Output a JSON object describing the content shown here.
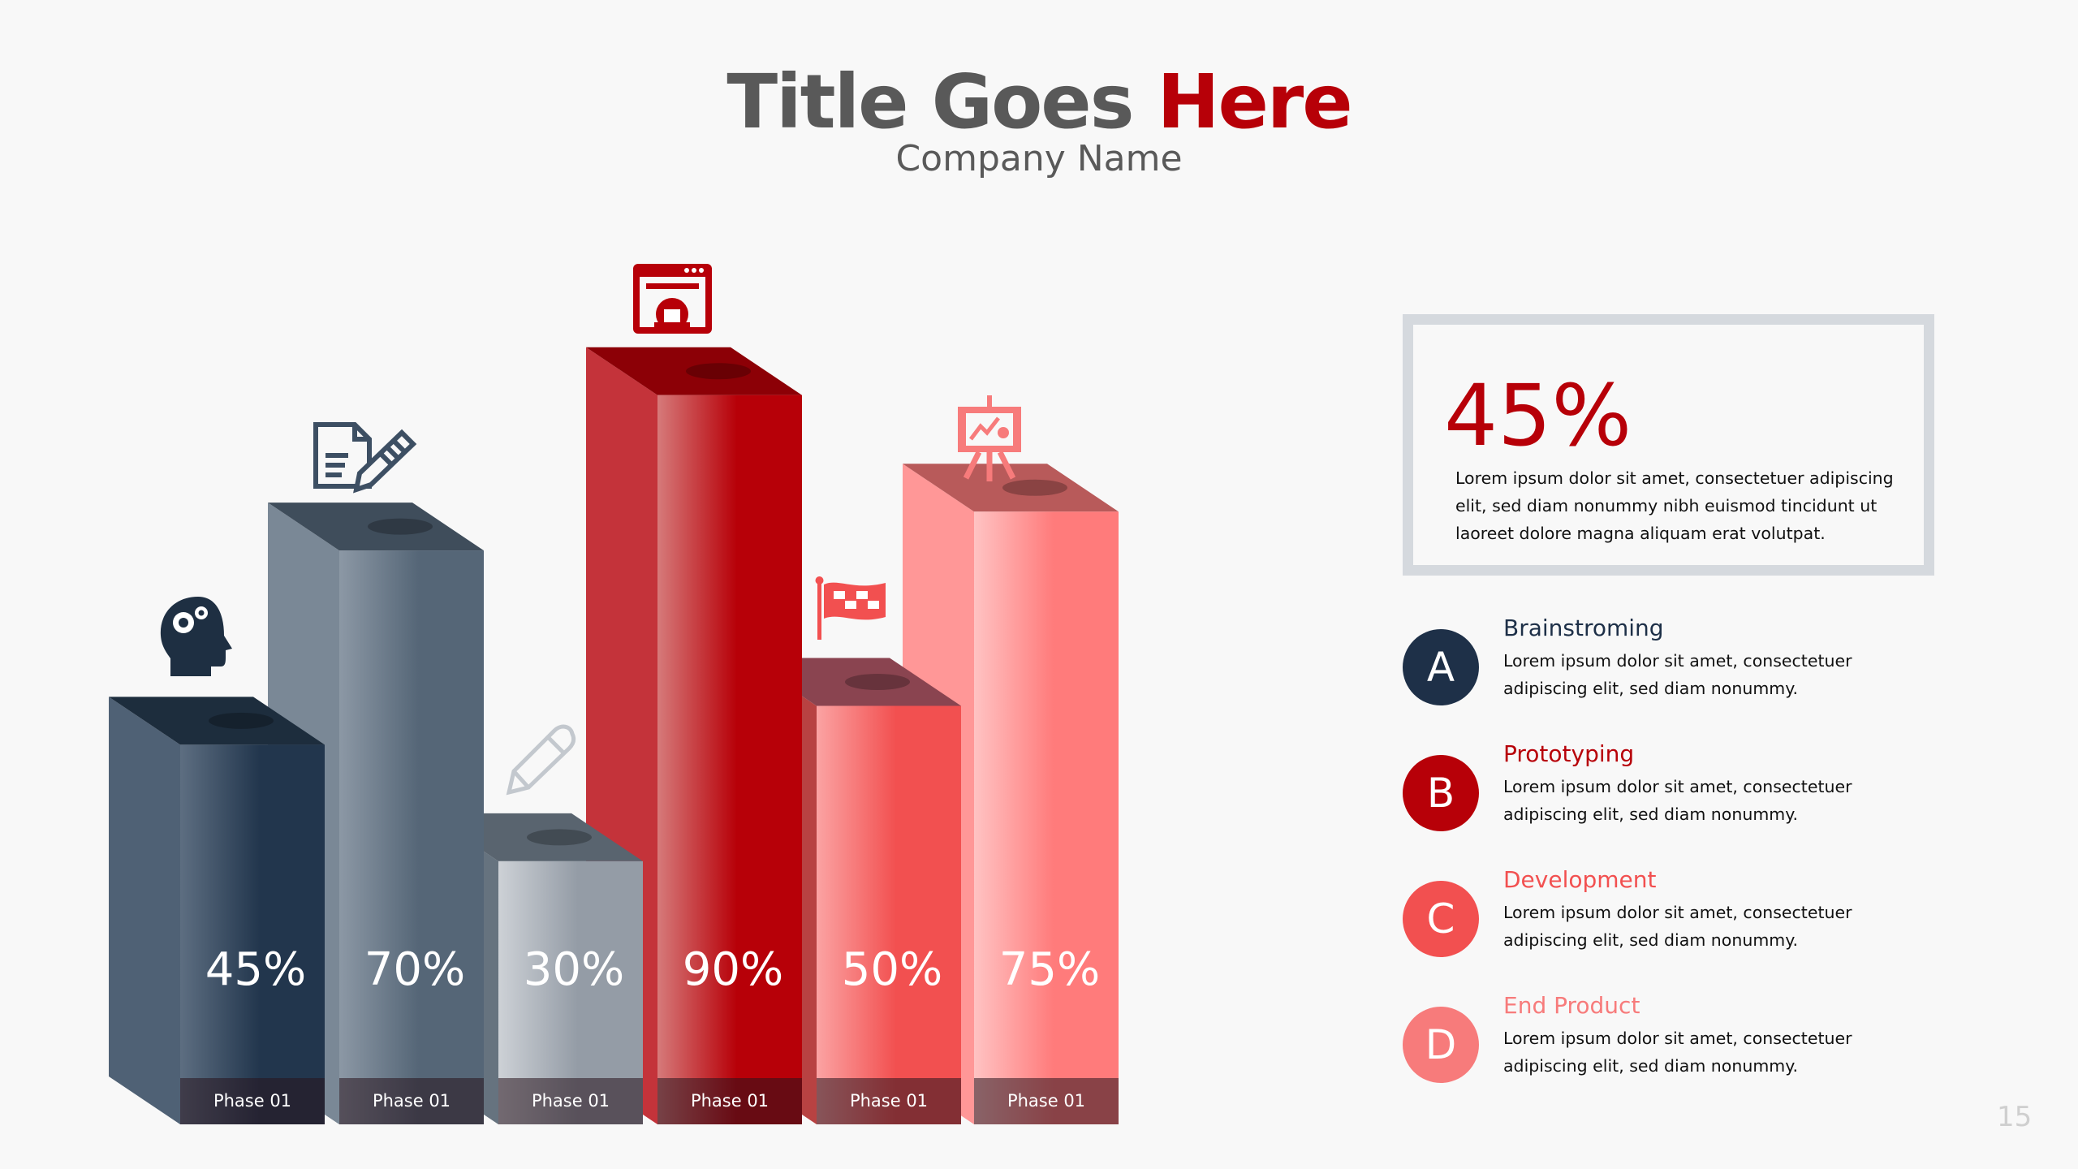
{
  "header": {
    "title_part1": "Title Goes",
    "title_highlight": "Here",
    "subtitle": "Company Name"
  },
  "chart_data": {
    "type": "bar",
    "style": "3d",
    "categories": [
      "Phase 01",
      "Phase 01",
      "Phase 01",
      "Phase 01",
      "Phase 01",
      "Phase 01"
    ],
    "values": [
      45,
      70,
      30,
      90,
      50,
      75
    ],
    "value_labels": [
      "45%",
      "70%",
      "30%",
      "90%",
      "50%",
      "75%"
    ],
    "icons": [
      "head-gears-icon",
      "document-pencil-icon",
      "pencil-icon",
      "browser-gear-icon",
      "checkered-flag-icon",
      "presentation-easel-icon"
    ],
    "colors": [
      "#22364d",
      "#556677",
      "#949ca6",
      "#b70008",
      "#f25050",
      "#ff7b7b"
    ]
  },
  "highlight_box": {
    "value": "45%",
    "text": "Lorem ipsum dolor sit amet, consectetuer adipiscing elit, sed diam nonummy nibh euismod tincidunt ut laoreet dolore magna aliquam erat volutpat."
  },
  "legend_items": [
    {
      "letter": "A",
      "name": "Brainstroming",
      "desc": "Lorem ipsum dolor sit amet, consectetuer adipiscing elit, sed diam nonummy.",
      "color": "#1e3048"
    },
    {
      "letter": "B",
      "name": "Prototyping",
      "desc": "Lorem ipsum dolor sit amet, consectetuer adipiscing elit, sed diam nonummy.",
      "color": "#b70008"
    },
    {
      "letter": "C",
      "name": "Development",
      "desc": "Lorem ipsum dolor sit amet, consectetuer adipiscing elit, sed diam nonummy.",
      "color": "#f25050"
    },
    {
      "letter": "D",
      "name": "End Product",
      "desc": "Lorem ipsum dolor sit amet, consectetuer adipiscing elit, sed diam nonummy.",
      "color": "#f77b7b"
    }
  ],
  "page_number": "15"
}
